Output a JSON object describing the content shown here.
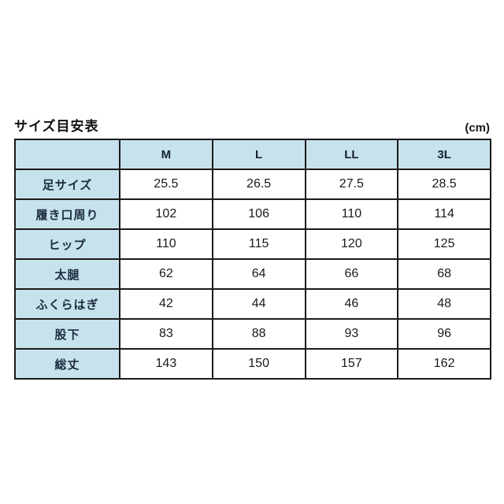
{
  "page": {
    "title": "サイズ目安表",
    "unit_label": "(cm)"
  },
  "table": {
    "corner_label": "",
    "columns": [
      "M",
      "L",
      "LL",
      "3L"
    ],
    "rows": [
      {
        "label": "足サイズ",
        "values": [
          "25.5",
          "26.5",
          "27.5",
          "28.5"
        ]
      },
      {
        "label": "履き口周り",
        "values": [
          "102",
          "106",
          "110",
          "114"
        ]
      },
      {
        "label": "ヒップ",
        "values": [
          "110",
          "115",
          "120",
          "125"
        ]
      },
      {
        "label": "太腿",
        "values": [
          "62",
          "64",
          "66",
          "68"
        ]
      },
      {
        "label": "ふくらはぎ",
        "values": [
          "42",
          "44",
          "46",
          "48"
        ]
      },
      {
        "label": "股下",
        "values": [
          "83",
          "88",
          "93",
          "96"
        ]
      },
      {
        "label": "総丈",
        "values": [
          "143",
          "150",
          "157",
          "162"
        ]
      }
    ]
  },
  "chart_data": {
    "type": "table",
    "title": "サイズ目安表",
    "unit": "cm",
    "categories": [
      "M",
      "L",
      "LL",
      "3L"
    ],
    "series": [
      {
        "name": "足サイズ",
        "values": [
          25.5,
          26.5,
          27.5,
          28.5
        ]
      },
      {
        "name": "履き口周り",
        "values": [
          102,
          106,
          110,
          114
        ]
      },
      {
        "name": "ヒップ",
        "values": [
          110,
          115,
          120,
          125
        ]
      },
      {
        "name": "太腿",
        "values": [
          62,
          64,
          66,
          68
        ]
      },
      {
        "name": "ふくらはぎ",
        "values": [
          42,
          44,
          46,
          48
        ]
      },
      {
        "name": "股下",
        "values": [
          83,
          88,
          93,
          96
        ]
      },
      {
        "name": "総丈",
        "values": [
          143,
          150,
          157,
          162
        ]
      }
    ]
  },
  "colors": {
    "cell_fill_blue": "#c6e2ec",
    "border": "#1b1b1b",
    "label_text": "#1c2b3e",
    "value_text": "#1a1a1a",
    "background": "#ffffff"
  }
}
